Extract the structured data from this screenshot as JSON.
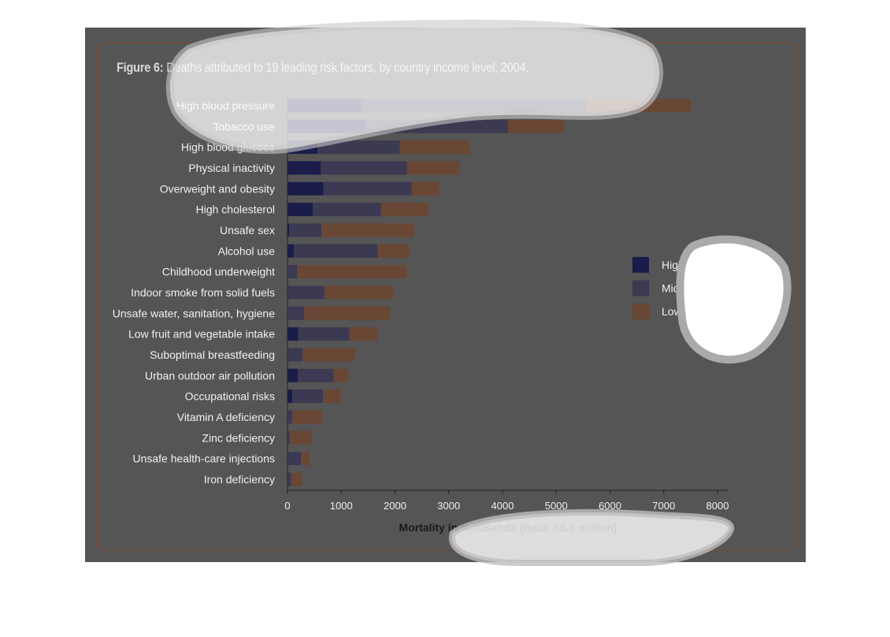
{
  "figure": {
    "title_lead": "Figure 6:",
    "title_rest": " Deaths attributed to 19 leading risk factors, by country income level, 2004."
  },
  "chart_data": {
    "type": "bar",
    "orientation": "horizontal",
    "stacked": true,
    "categories": [
      "High blood pressure",
      "Tobacco use",
      "High blood glucose",
      "Physical inactivity",
      "Overweight and obesity",
      "High cholesterol",
      "Unsafe sex",
      "Alcohol use",
      "Childhood underweight",
      "Indoor smoke from solid fuels",
      "Unsafe water, sanitation, hygiene",
      "Low fruit and vegetable intake",
      "Suboptimal breastfeeding",
      "Urban outdoor air pollution",
      "Occupational risks",
      "Vitamin A deficiency",
      "Zinc deficiency",
      "Unsafe health-care injections",
      "Iron deficiency"
    ],
    "series": [
      {
        "name": "High income",
        "color": "#1a1c4a",
        "values": [
          1370,
          1450,
          560,
          620,
          670,
          470,
          30,
          120,
          10,
          10,
          10,
          200,
          10,
          190,
          90,
          10,
          10,
          10,
          10
        ]
      },
      {
        "name": "Middle income",
        "color": "#3c3a52",
        "values": [
          4190,
          2650,
          1530,
          1600,
          1640,
          1270,
          600,
          1560,
          170,
          680,
          300,
          950,
          270,
          670,
          570,
          80,
          30,
          240,
          60
        ]
      },
      {
        "name": "Low income",
        "color": "#6a4634",
        "values": [
          1940,
          1040,
          1300,
          990,
          500,
          880,
          1720,
          580,
          2040,
          1280,
          1600,
          520,
          970,
          270,
          330,
          560,
          410,
          160,
          200
        ]
      }
    ],
    "xlabel": "Mortality in thousands (total: 58.8 million)",
    "xlim": [
      0,
      8000
    ],
    "xticks": [
      0,
      1000,
      2000,
      3000,
      4000,
      5000,
      6000,
      7000,
      8000
    ],
    "grid": false,
    "legend_position": "right"
  }
}
